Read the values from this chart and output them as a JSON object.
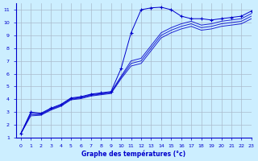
{
  "title": "Graphe des températures (°c)",
  "bg_color": "#cceeff",
  "line_color": "#0000cc",
  "grid_color": "#aabbcc",
  "xlim": [
    -0.5,
    23
  ],
  "ylim": [
    1,
    11.5
  ],
  "xticks": [
    0,
    1,
    2,
    3,
    4,
    5,
    6,
    7,
    8,
    9,
    10,
    11,
    12,
    13,
    14,
    15,
    16,
    17,
    18,
    19,
    20,
    21,
    22,
    23
  ],
  "yticks": [
    1,
    2,
    3,
    4,
    5,
    6,
    7,
    8,
    9,
    10,
    11
  ],
  "x": [
    0,
    1,
    2,
    3,
    4,
    5,
    6,
    7,
    8,
    9,
    10,
    11,
    12,
    13,
    14,
    15,
    16,
    17,
    18,
    19,
    20,
    21,
    22,
    23
  ],
  "y_main": [
    1.3,
    3.0,
    2.9,
    3.3,
    3.6,
    4.1,
    4.2,
    4.4,
    4.5,
    4.6,
    6.4,
    9.2,
    11.0,
    11.15,
    11.2,
    11.0,
    10.5,
    10.3,
    10.3,
    10.2,
    10.3,
    10.4,
    10.5,
    10.9
  ],
  "y_b1": [
    1.3,
    2.9,
    2.85,
    3.25,
    3.55,
    4.05,
    4.15,
    4.35,
    4.45,
    4.55,
    5.8,
    7.0,
    7.2,
    8.2,
    9.2,
    9.6,
    9.9,
    10.1,
    9.8,
    9.9,
    10.1,
    10.2,
    10.3,
    10.7
  ],
  "y_b2": [
    1.3,
    2.8,
    2.8,
    3.2,
    3.5,
    4.0,
    4.1,
    4.3,
    4.4,
    4.5,
    5.7,
    6.8,
    7.0,
    8.0,
    9.0,
    9.4,
    9.7,
    9.9,
    9.6,
    9.7,
    9.9,
    10.0,
    10.1,
    10.5
  ],
  "y_b3": [
    1.3,
    2.7,
    2.75,
    3.15,
    3.45,
    3.95,
    4.05,
    4.25,
    4.35,
    4.45,
    5.6,
    6.6,
    6.8,
    7.8,
    8.8,
    9.2,
    9.5,
    9.7,
    9.4,
    9.5,
    9.7,
    9.8,
    9.9,
    10.3
  ]
}
